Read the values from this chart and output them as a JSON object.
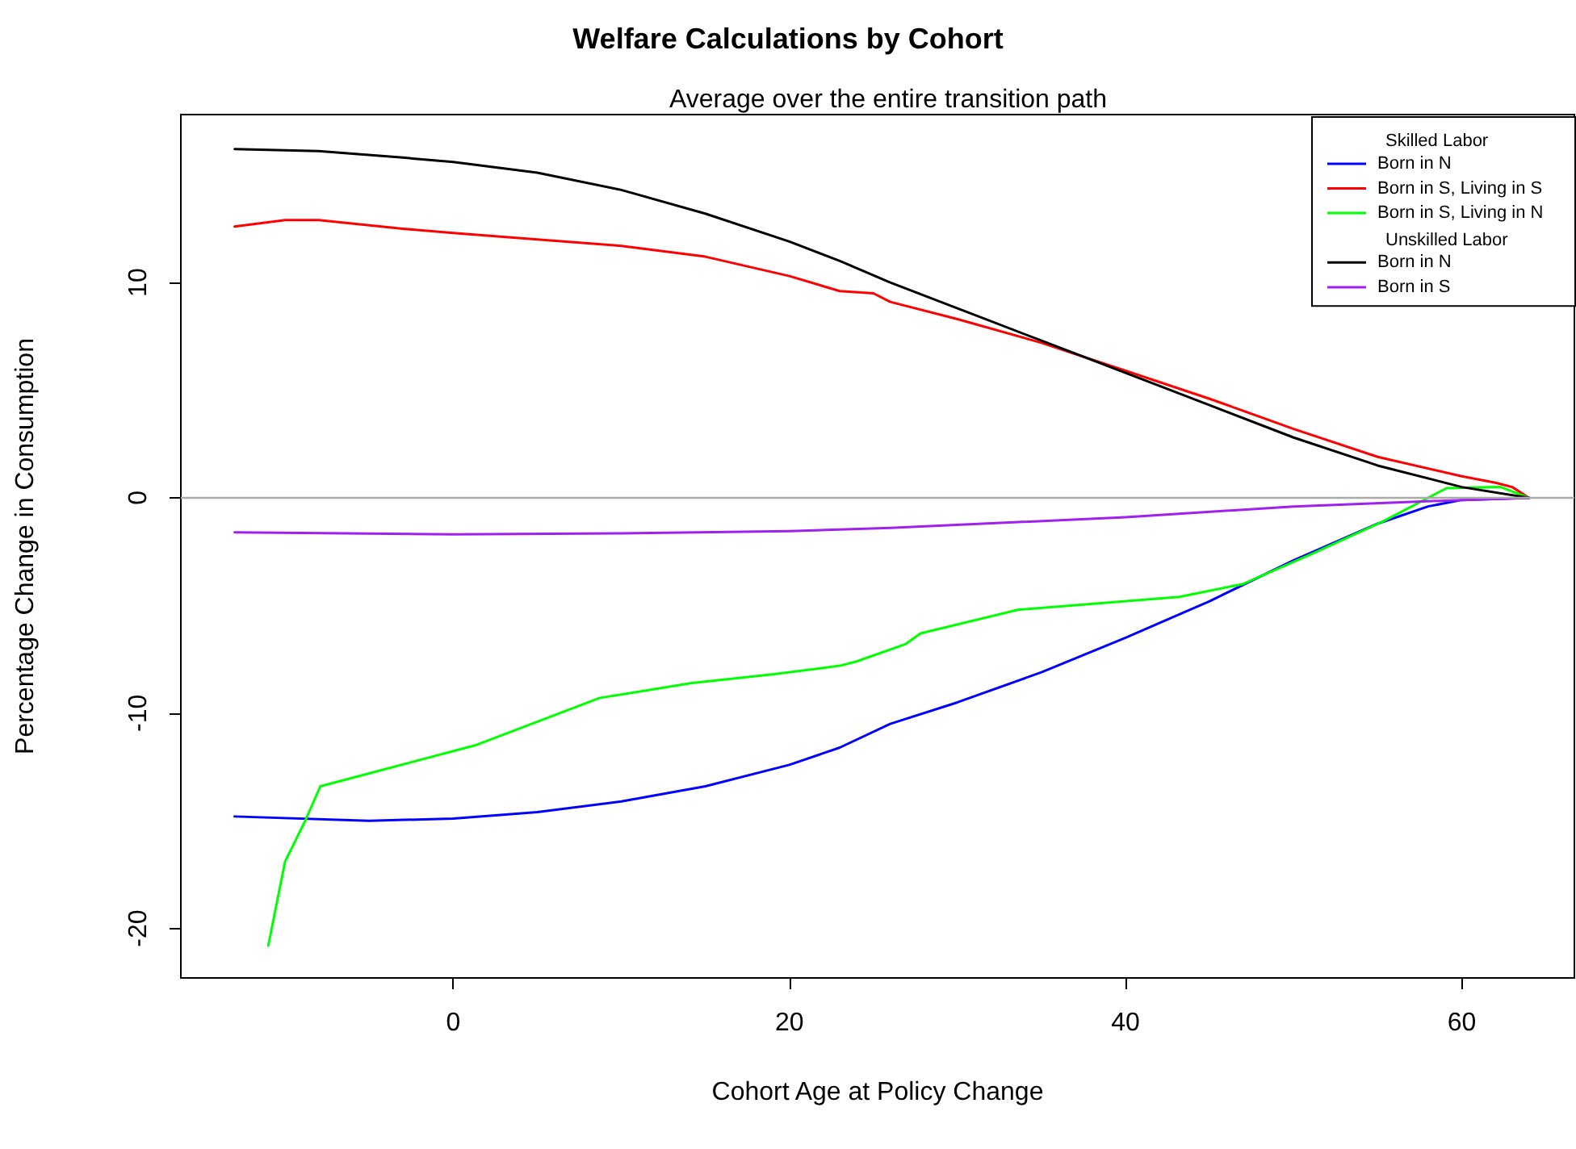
{
  "chart_data": {
    "type": "line",
    "title": "Welfare Calculations by Cohort",
    "subtitle": "Average over the entire transition path",
    "xlabel": "Cohort Age at Policy Change",
    "ylabel": "Percentage Change in Consumption",
    "annotations": [
      "Skilled Labor",
      "Unskilled Labor"
    ],
    "xlim": [
      -16.2,
      66.7
    ],
    "xticks": [
      0,
      20,
      40,
      60
    ],
    "ylim": [
      -22.3,
      17.8
    ],
    "yticks": [
      -20,
      -10,
      0,
      10
    ],
    "grid": false,
    "legend": "top right",
    "marker": "none",
    "line_style": "solid",
    "ref_lines": [
      {
        "axis": "y",
        "value": 0,
        "color": "#aaaaaa"
      }
    ],
    "series": [
      {
        "name": "Born in N",
        "color": "#0000ff",
        "x": [
          -13,
          -5,
          0,
          5,
          10,
          15,
          20,
          23,
          26,
          30,
          35,
          40,
          45,
          50,
          55,
          58,
          60,
          64
        ],
        "values": [
          -14.8,
          -15.0,
          -14.9,
          -14.6,
          -14.1,
          -13.4,
          -12.4,
          -11.6,
          -10.5,
          -9.5,
          -8.1,
          -6.5,
          -4.8,
          -2.9,
          -1.2,
          -0.4,
          -0.1,
          0
        ]
      },
      {
        "name": "Born in S, Living in S",
        "color": "#ff0000",
        "x": [
          -13,
          -10,
          -8,
          -3,
          0,
          5,
          10,
          15,
          20,
          23,
          25,
          26,
          30,
          35,
          40,
          45,
          50,
          55,
          60,
          62,
          63,
          64
        ],
        "values": [
          12.6,
          12.9,
          12.9,
          12.5,
          12.3,
          12.0,
          11.7,
          11.2,
          10.3,
          9.6,
          9.5,
          9.1,
          8.3,
          7.2,
          5.9,
          4.6,
          3.2,
          1.9,
          1.0,
          0.7,
          0.5,
          0
        ]
      },
      {
        "name": "Born in S, Living in N",
        "color": "#00ff00",
        "x": [
          -11,
          -10,
          -8.8,
          -7.9,
          -5,
          1.3,
          8.7,
          14.2,
          19,
          23,
          24,
          26.9,
          27.8,
          33.6,
          43.2,
          47,
          51.1,
          55.3,
          59.1,
          62.3,
          64
        ],
        "values": [
          -20.8,
          -16.9,
          -15.0,
          -13.4,
          -12.8,
          -11.5,
          -9.3,
          -8.6,
          -8.2,
          -7.8,
          -7.6,
          -6.8,
          -6.3,
          -5.2,
          -4.6,
          -4.0,
          -2.6,
          -1.1,
          0.45,
          0.5,
          0
        ]
      },
      {
        "name": "Born in N",
        "color": "#000000",
        "x": [
          -13,
          -8,
          -3,
          0,
          5,
          10,
          15,
          20,
          23,
          26,
          30,
          35,
          40,
          45,
          50,
          55,
          60,
          64
        ],
        "values": [
          16.2,
          16.1,
          15.8,
          15.6,
          15.1,
          14.3,
          13.2,
          11.9,
          11.0,
          10.0,
          8.8,
          7.3,
          5.8,
          4.3,
          2.8,
          1.5,
          0.5,
          0
        ]
      },
      {
        "name": "Born in S",
        "color": "#a020f0",
        "x": [
          -13,
          0,
          10,
          20,
          26,
          40,
          50,
          60,
          64
        ],
        "values": [
          -1.6,
          -1.7,
          -1.65,
          -1.55,
          -1.4,
          -0.9,
          -0.4,
          -0.1,
          0
        ]
      }
    ]
  }
}
